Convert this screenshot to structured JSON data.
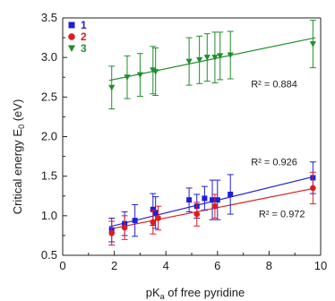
{
  "chart_data": {
    "type": "scatter",
    "xlabel_main": "pK",
    "xlabel_sub": "a",
    "xlabel_rest": " of free pyridine",
    "ylabel_main": "Critical energy E",
    "ylabel_sub": "0",
    "ylabel_rest": " (eV)",
    "xlim": [
      0,
      10
    ],
    "ylim": [
      0.5,
      3.5
    ],
    "x_ticks": [
      0,
      2,
      4,
      6,
      8,
      10
    ],
    "y_ticks": [
      0.5,
      1.0,
      1.5,
      2.0,
      2.5,
      3.0,
      3.5
    ],
    "x_tick_labels": [
      "0",
      "2",
      "4",
      "6",
      "8",
      "10"
    ],
    "y_tick_labels": [
      "0.5",
      "1.0",
      "1.5",
      "2.0",
      "2.5",
      "3.0",
      "3.5"
    ],
    "legend_position": "top-left",
    "series": [
      {
        "name": "1",
        "marker": "square",
        "color": "#1f1fd6",
        "points": [
          {
            "x": 1.9,
            "y": 0.82,
            "err": 0.15
          },
          {
            "x": 2.4,
            "y": 0.9,
            "err": 0.15
          },
          {
            "x": 2.8,
            "y": 0.94,
            "err": 0.2
          },
          {
            "x": 3.5,
            "y": 1.08,
            "err": 0.2
          },
          {
            "x": 3.6,
            "y": 1.04,
            "err": 0.2
          },
          {
            "x": 4.9,
            "y": 1.2,
            "err": 0.15
          },
          {
            "x": 5.2,
            "y": 1.12,
            "err": 0.15
          },
          {
            "x": 5.5,
            "y": 1.22,
            "err": 0.15
          },
          {
            "x": 5.8,
            "y": 1.2,
            "err": 0.25
          },
          {
            "x": 6.0,
            "y": 1.2,
            "err": 0.25
          },
          {
            "x": 6.5,
            "y": 1.27,
            "err": 0.25
          },
          {
            "x": 9.7,
            "y": 1.48,
            "err": 0.2
          }
        ],
        "fit": {
          "x": [
            1.8,
            9.8
          ],
          "y": [
            0.86,
            1.5
          ]
        },
        "r2_label": "R² = 0.926",
        "r2_pos": {
          "x": 7.3,
          "y": 1.64
        }
      },
      {
        "name": "2",
        "marker": "circle",
        "color": "#e01b1b",
        "points": [
          {
            "x": 1.9,
            "y": 0.78,
            "err": 0.15
          },
          {
            "x": 2.4,
            "y": 0.85,
            "err": 0.15
          },
          {
            "x": 3.5,
            "y": 0.92,
            "err": 0.15
          },
          {
            "x": 3.7,
            "y": 0.97,
            "err": 0.15
          },
          {
            "x": 5.2,
            "y": 1.02,
            "err": 0.15
          },
          {
            "x": 5.9,
            "y": 1.12,
            "err": 0.15
          },
          {
            "x": 9.7,
            "y": 1.35,
            "err": 0.2
          }
        ],
        "fit": {
          "x": [
            1.8,
            9.8
          ],
          "y": [
            0.83,
            1.35
          ]
        },
        "r2_label": "R² = 0.972",
        "r2_pos": {
          "x": 7.6,
          "y": 0.98
        }
      },
      {
        "name": "3",
        "marker": "triangle-down",
        "color": "#1f8f2a",
        "points": [
          {
            "x": 1.9,
            "y": 2.62,
            "err": 0.27
          },
          {
            "x": 2.5,
            "y": 2.75,
            "err": 0.27
          },
          {
            "x": 3.0,
            "y": 2.78,
            "err": 0.27
          },
          {
            "x": 3.5,
            "y": 2.84,
            "err": 0.3
          },
          {
            "x": 3.6,
            "y": 2.82,
            "err": 0.3
          },
          {
            "x": 4.9,
            "y": 2.95,
            "err": 0.3
          },
          {
            "x": 5.3,
            "y": 2.97,
            "err": 0.3
          },
          {
            "x": 5.6,
            "y": 3.0,
            "err": 0.3
          },
          {
            "x": 5.9,
            "y": 3.0,
            "err": 0.32
          },
          {
            "x": 6.1,
            "y": 3.02,
            "err": 0.3
          },
          {
            "x": 6.5,
            "y": 3.03,
            "err": 0.3
          },
          {
            "x": 9.7,
            "y": 3.17,
            "err": 0.3
          }
        ],
        "fit": {
          "x": [
            1.8,
            9.8
          ],
          "y": [
            2.71,
            3.25
          ]
        },
        "r2_label": "R² = 0.884",
        "r2_pos": {
          "x": 7.3,
          "y": 2.62
        }
      }
    ]
  }
}
